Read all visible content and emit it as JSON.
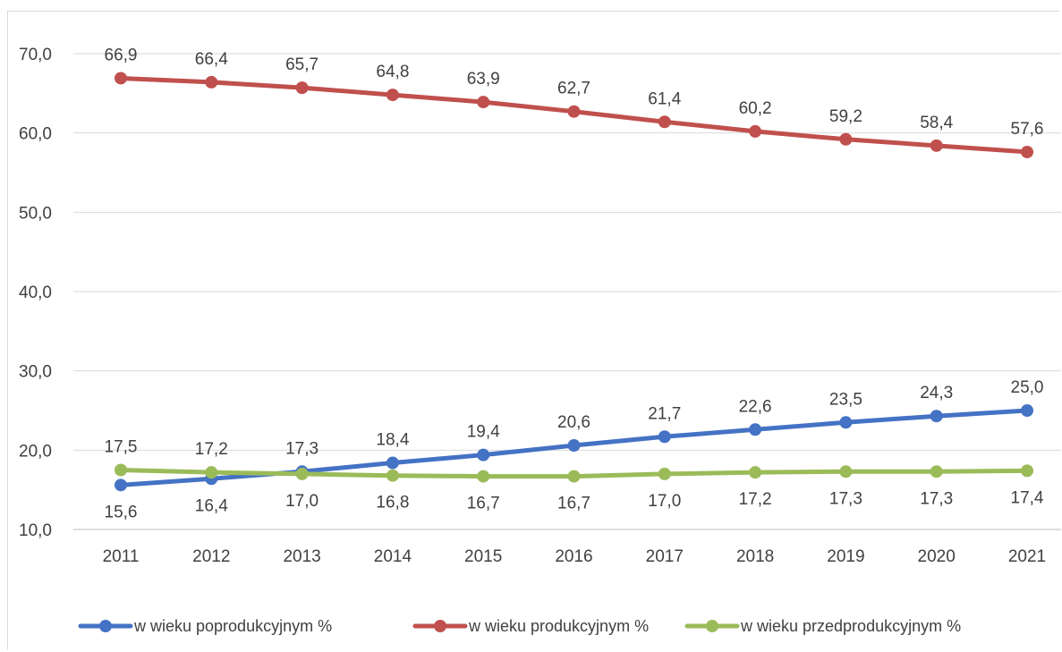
{
  "chart_data": {
    "type": "line",
    "categories": [
      "2011",
      "2012",
      "2013",
      "2014",
      "2015",
      "2016",
      "2017",
      "2018",
      "2019",
      "2020",
      "2021"
    ],
    "ylim": [
      10,
      70
    ],
    "yticks": [
      10,
      20,
      30,
      40,
      50,
      60,
      70
    ],
    "ytick_labels": [
      "10,0",
      "20,0",
      "30,0",
      "40,0",
      "50,0",
      "60,0",
      "70,0"
    ],
    "grid": "horizontal",
    "legend_position": "bottom",
    "series": [
      {
        "name": "w wieku poprodukcyjnym %",
        "color": "#4472C4",
        "values": [
          15.6,
          16.4,
          17.3,
          18.4,
          19.4,
          20.6,
          21.7,
          22.6,
          23.5,
          24.3,
          25.0
        ],
        "labels": [
          "15,6",
          "16,4",
          "17,3",
          "18,4",
          "19,4",
          "20,6",
          "21,7",
          "22,6",
          "23,5",
          "24,3",
          "25,0"
        ]
      },
      {
        "name": "w wieku produkcyjnym %",
        "color": "#C0504D",
        "values": [
          66.9,
          66.4,
          65.7,
          64.8,
          63.9,
          62.7,
          61.4,
          60.2,
          59.2,
          58.4,
          57.6
        ],
        "labels": [
          "66,9",
          "66,4",
          "65,7",
          "64,8",
          "63,9",
          "62,7",
          "61,4",
          "60,2",
          "59,2",
          "58,4",
          "57,6"
        ]
      },
      {
        "name": "w wieku przedprodukcyjnym %",
        "color": "#9BBB59",
        "values": [
          17.5,
          17.2,
          17.0,
          16.8,
          16.7,
          16.7,
          17.0,
          17.2,
          17.3,
          17.3,
          17.4
        ],
        "labels": [
          "17,5",
          "17,2",
          "17,0",
          "16,8",
          "16,7",
          "16,7",
          "17,0",
          "17,2",
          "17,3",
          "17,3",
          "17,4"
        ]
      }
    ]
  }
}
